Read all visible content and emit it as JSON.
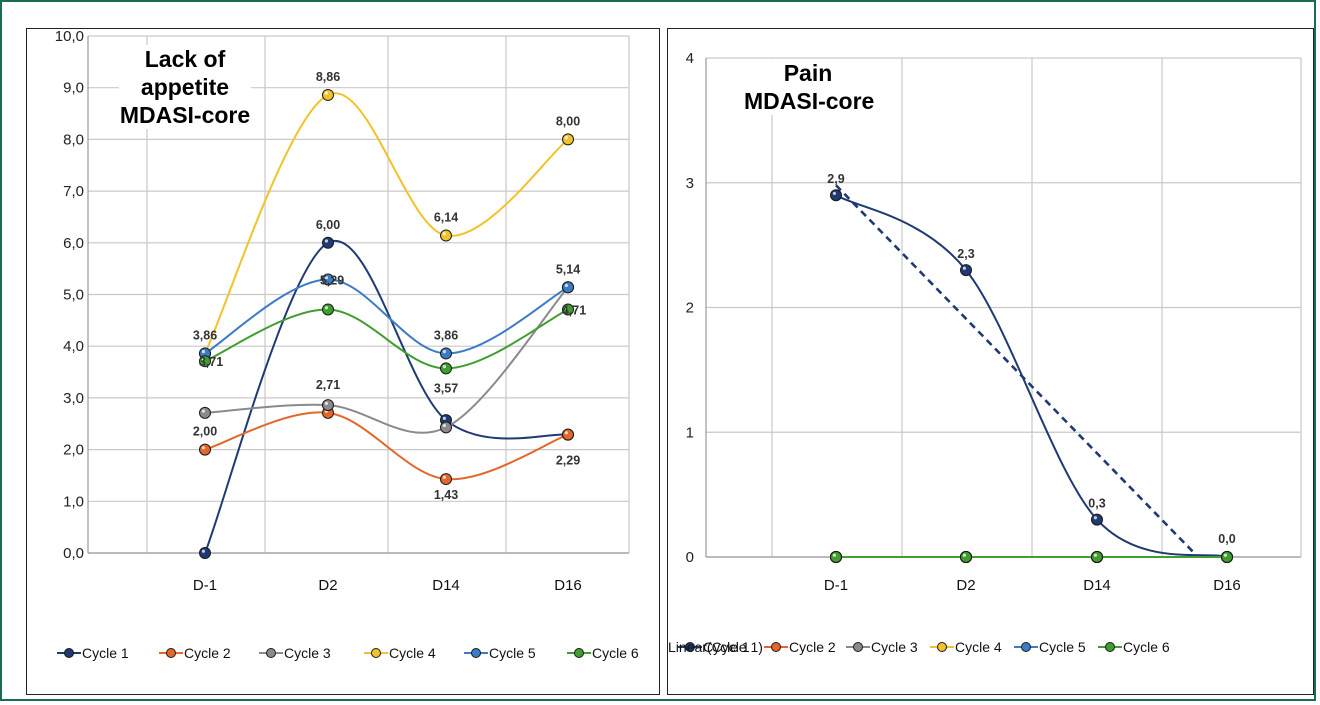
{
  "chart_data": [
    {
      "type": "line",
      "title": [
        "Lack of",
        "appetite",
        "MDASI-core"
      ],
      "categories": [
        "D-1",
        "D2",
        "D14",
        "D16"
      ],
      "ylim": [
        0,
        10
      ],
      "yticks": [
        "0,0",
        "1,0",
        "2,0",
        "3,0",
        "4,0",
        "5,0",
        "6,0",
        "7,0",
        "8,0",
        "9,0",
        "10,0"
      ],
      "grid": true,
      "legend_position": "bottom",
      "series": [
        {
          "name": "Cycle 1",
          "values": [
            0.0,
            6.0,
            2.57,
            2.29
          ],
          "color": "#1f3a73",
          "labels": [
            null,
            "6,00",
            null,
            null
          ]
        },
        {
          "name": "Cycle 2",
          "values": [
            2.0,
            2.71,
            1.43,
            2.29
          ],
          "color": "#e4662a",
          "labels": [
            "2,00",
            null,
            "1,43",
            "2,29"
          ]
        },
        {
          "name": "Cycle 3",
          "values": [
            2.71,
            2.86,
            2.43,
            5.14
          ],
          "color": "#8a8a8a",
          "labels": [
            null,
            "2,71",
            null,
            null
          ]
        },
        {
          "name": "Cycle 4",
          "values": [
            3.86,
            8.86,
            6.14,
            8.0
          ],
          "color": "#f2c22c",
          "labels": [
            null,
            "8,86",
            "6,14",
            "8,00"
          ]
        },
        {
          "name": "Cycle 5",
          "values": [
            3.86,
            5.29,
            3.86,
            5.14
          ],
          "color": "#3c7cc6",
          "labels": [
            "3,86",
            "5,29",
            "3,86",
            "5,14"
          ]
        },
        {
          "name": "Cycle 6",
          "values": [
            3.71,
            4.71,
            3.57,
            4.71
          ],
          "color": "#3f9e2e",
          "labels": [
            "3,71",
            null,
            "3,57",
            "4,71"
          ]
        }
      ]
    },
    {
      "type": "line",
      "title": [
        "Pain",
        "MDASI-core"
      ],
      "categories": [
        "D-1",
        "D2",
        "D14",
        "D16"
      ],
      "ylim": [
        0,
        4
      ],
      "yticks": [
        "0",
        "1",
        "2",
        "3",
        "4"
      ],
      "grid": true,
      "legend_position": "bottom",
      "series": [
        {
          "name": "Cycle 1",
          "values": [
            2.9,
            2.3,
            0.3,
            0.0
          ],
          "color": "#1f3a73",
          "labels": [
            "2,9",
            "2,3",
            "0,3",
            "0,0"
          ]
        },
        {
          "name": "Cycle 2",
          "values": [
            0,
            0,
            0,
            0
          ],
          "color": "#e4662a",
          "labels": [
            null,
            null,
            null,
            null
          ]
        },
        {
          "name": "Cycle 3",
          "values": [
            0,
            0,
            0,
            0
          ],
          "color": "#8a8a8a",
          "labels": [
            null,
            null,
            null,
            null
          ]
        },
        {
          "name": "Cycle 4",
          "values": [
            0,
            0,
            0,
            0
          ],
          "color": "#f2c22c",
          "labels": [
            null,
            null,
            null,
            null
          ]
        },
        {
          "name": "Cycle 5",
          "values": [
            0,
            0,
            0,
            0
          ],
          "color": "#3c7cc6",
          "labels": [
            null,
            null,
            null,
            null
          ]
        },
        {
          "name": "Cycle 6",
          "values": [
            0,
            0,
            0,
            0
          ],
          "color": "#3f9e2e",
          "labels": [
            null,
            null,
            null,
            null
          ]
        }
      ],
      "trendline": {
        "name": "Linear(Cycle 1)",
        "of": "Cycle 1",
        "type": "linear",
        "color": "#1f3a73",
        "dashed": true
      }
    }
  ]
}
